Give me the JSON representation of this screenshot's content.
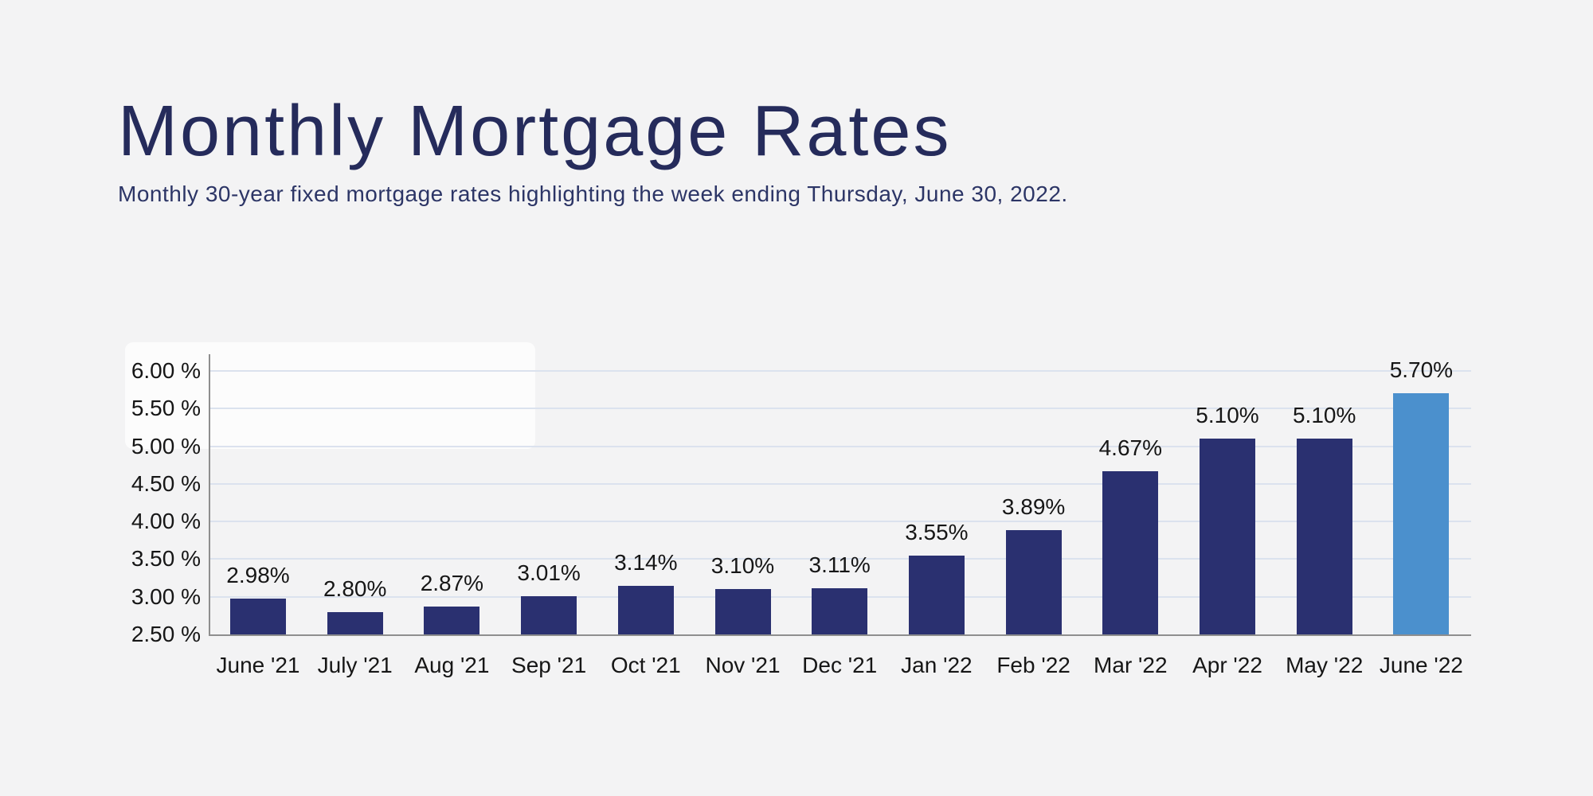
{
  "page": {
    "background_color": "#f3f3f4"
  },
  "header": {
    "title": "Monthly Mortgage Rates",
    "subtitle": "Monthly 30-year fixed mortgage rates highlighting the week ending Thursday, June 30, 2022.",
    "title_color": "#252b5b",
    "subtitle_color": "#2c3566"
  },
  "chart_data": {
    "type": "bar",
    "title": "Monthly Mortgage Rates",
    "subtitle": "Monthly 30-year fixed mortgage rates highlighting the week ending Thursday, June 30, 2022.",
    "categories": [
      "June '21",
      "July '21",
      "Aug '21",
      "Sep '21",
      "Oct '21",
      "Nov '21",
      "Dec '21",
      "Jan '22",
      "Feb '22",
      "Mar '22",
      "Apr '22",
      "May '22",
      "June '22"
    ],
    "values": [
      2.98,
      2.8,
      2.87,
      3.01,
      3.14,
      3.1,
      3.11,
      3.55,
      3.89,
      4.67,
      5.1,
      5.1,
      5.7
    ],
    "value_labels": [
      "2.98%",
      "2.80%",
      "2.87%",
      "3.01%",
      "3.14%",
      "3.10%",
      "3.11%",
      "3.55%",
      "3.89%",
      "4.67%",
      "5.10%",
      "5.10%",
      "5.70%"
    ],
    "y_tick_values": [
      6.0,
      5.5,
      5.0,
      4.5,
      4.0,
      3.5,
      3.0,
      2.5
    ],
    "y_tick_labels": [
      "6.00 %",
      "5.50 %",
      "5.00 %",
      "4.50 %",
      "4.00 %",
      "3.50 %",
      "3.00 %",
      "2.50 %"
    ],
    "ylim": [
      2.5,
      6.0
    ],
    "xlabel": "",
    "ylabel": "",
    "grid": true,
    "legend": false,
    "highlighted_index": 12,
    "colors": {
      "bar": "#2a3070",
      "highlighted_bar": "#4b90cd",
      "gridline": "#dbe2ee",
      "axis": "#8e8e8e",
      "label": "#161616"
    }
  }
}
